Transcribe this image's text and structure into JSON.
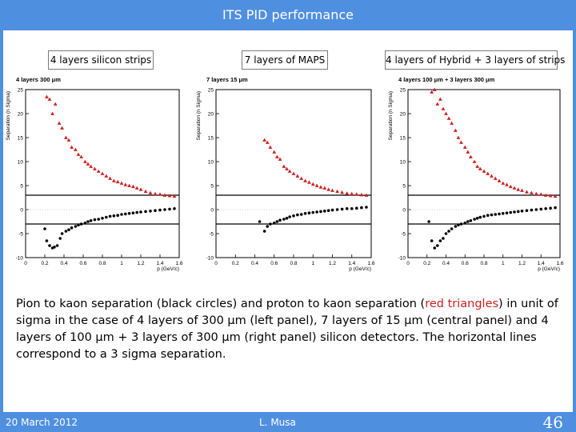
{
  "slide": {
    "title": "ITS PID performance",
    "footer_date": "20 March 2012",
    "footer_author": "L. Musa",
    "page_number": "46"
  },
  "panel_labels": [
    "4 layers silicon strips",
    "7 layers of MAPS",
    "4 layers of Hybrid + 3 layers of strips"
  ],
  "caption": {
    "part1": "Pion to kaon separation (black circles) and proton to kaon separation (",
    "highlight": "red triangles",
    "part2": ") in unit of sigma in the case of 4 layers of 300 μm (left panel), 7 layers of 15 μm (central panel) and 4 layers of 100 μm + 3 layers of 300 μm (right panel) silicon detectors. The horizontal lines correspond to a 3 sigma separation."
  },
  "colors": {
    "accent": "#4f8fe0",
    "proton_kaon": "#d02020",
    "pion_kaon": "#000000"
  },
  "chart_data": [
    {
      "type": "scatter",
      "title": "4 layers 300 μm",
      "xlabel": "p (GeV/c)",
      "ylabel": "Separation (n Sigma)",
      "xlim": [
        0,
        1.6
      ],
      "ylim": [
        -10,
        25
      ],
      "xticks": [
        "0",
        "0.2",
        "0.4",
        "0.6",
        "0.8",
        "1",
        "1.2",
        "1.4",
        "1.6"
      ],
      "yticks": [
        "-10",
        "-5",
        "0",
        "5",
        "10",
        "15",
        "20",
        "25"
      ],
      "hlines": [
        3,
        -3
      ],
      "series": [
        {
          "marker": "triangle",
          "color": "#d02020",
          "x": [
            0.22,
            0.25,
            0.28,
            0.31,
            0.35,
            0.38,
            0.42,
            0.45,
            0.48,
            0.52,
            0.55,
            0.58,
            0.62,
            0.65,
            0.68,
            0.72,
            0.76,
            0.8,
            0.84,
            0.88,
            0.92,
            0.96,
            1.0,
            1.04,
            1.08,
            1.12,
            1.16,
            1.2,
            1.25,
            1.3,
            1.35,
            1.4,
            1.45,
            1.5,
            1.55
          ],
          "y": [
            23.5,
            23,
            20,
            22,
            18,
            17,
            15,
            14.5,
            13,
            12.5,
            11.5,
            11,
            10,
            9.5,
            9,
            8.5,
            8,
            7.5,
            7,
            6.5,
            6,
            5.8,
            5.5,
            5.2,
            5,
            4.8,
            4.5,
            4.2,
            3.8,
            3.5,
            3.3,
            3.2,
            3,
            2.9,
            2.8
          ]
        },
        {
          "marker": "circle",
          "color": "#000000",
          "x": [
            0.2,
            0.22,
            0.25,
            0.28,
            0.3,
            0.33,
            0.36,
            0.38,
            0.42,
            0.45,
            0.48,
            0.52,
            0.55,
            0.58,
            0.62,
            0.65,
            0.68,
            0.72,
            0.76,
            0.8,
            0.84,
            0.88,
            0.92,
            0.96,
            1.0,
            1.04,
            1.08,
            1.12,
            1.16,
            1.2,
            1.25,
            1.3,
            1.35,
            1.4,
            1.45,
            1.5,
            1.55
          ],
          "y": [
            -4,
            -6.5,
            -7.5,
            -8,
            -7.8,
            -7.5,
            -6,
            -5,
            -4.5,
            -4.2,
            -3.8,
            -3.5,
            -3.2,
            -3,
            -2.8,
            -2.5,
            -2.3,
            -2.1,
            -2,
            -1.8,
            -1.6,
            -1.4,
            -1.3,
            -1.2,
            -1,
            -0.9,
            -0.8,
            -0.7,
            -0.6,
            -0.5,
            -0.4,
            -0.3,
            -0.2,
            -0.1,
            0,
            0.1,
            0.2
          ]
        }
      ]
    },
    {
      "type": "scatter",
      "title": "7 layers 15 μm",
      "xlabel": "p (GeV/c)",
      "ylabel": "Separation (n Sigma)",
      "xlim": [
        0,
        1.6
      ],
      "ylim": [
        -10,
        25
      ],
      "xticks": [
        "0",
        "0.2",
        "0.4",
        "0.6",
        "0.8",
        "1",
        "1.2",
        "1.4",
        "1.6"
      ],
      "yticks": [
        "-10",
        "-5",
        "0",
        "5",
        "10",
        "15",
        "20",
        "25"
      ],
      "hlines": [
        3,
        -3
      ],
      "series": [
        {
          "marker": "triangle",
          "color": "#d02020",
          "x": [
            0.5,
            0.53,
            0.56,
            0.6,
            0.63,
            0.66,
            0.7,
            0.73,
            0.76,
            0.8,
            0.84,
            0.88,
            0.92,
            0.96,
            1.0,
            1.04,
            1.08,
            1.12,
            1.16,
            1.2,
            1.25,
            1.3,
            1.35,
            1.4,
            1.45,
            1.5,
            1.55
          ],
          "y": [
            14.5,
            14,
            13,
            12,
            11,
            10.5,
            9,
            8.5,
            8,
            7.5,
            7,
            6.5,
            6,
            5.7,
            5.3,
            5,
            4.7,
            4.5,
            4.2,
            4,
            3.8,
            3.6,
            3.4,
            3.3,
            3.2,
            3.1,
            3
          ]
        },
        {
          "marker": "circle",
          "color": "#000000",
          "x": [
            0.45,
            0.5,
            0.53,
            0.56,
            0.6,
            0.63,
            0.66,
            0.7,
            0.73,
            0.76,
            0.8,
            0.84,
            0.88,
            0.92,
            0.96,
            1.0,
            1.04,
            1.08,
            1.12,
            1.16,
            1.2,
            1.25,
            1.3,
            1.35,
            1.4,
            1.45,
            1.5,
            1.55
          ],
          "y": [
            -2.5,
            -4.5,
            -3.5,
            -3,
            -2.8,
            -2.5,
            -2.2,
            -2,
            -1.8,
            -1.5,
            -1.3,
            -1.1,
            -1,
            -0.8,
            -0.7,
            -0.6,
            -0.5,
            -0.4,
            -0.3,
            -0.2,
            -0.1,
            0,
            0.1,
            0.2,
            0.2,
            0.3,
            0.4,
            0.5
          ]
        }
      ]
    },
    {
      "type": "scatter",
      "title": "4 layers 100 μm + 3 layers 300 μm",
      "xlabel": "p (GeV/c)",
      "ylabel": "Separation (n Sigma)",
      "xlim": [
        0,
        1.6
      ],
      "ylim": [
        -10,
        25
      ],
      "xticks": [
        "0",
        "0.2",
        "0.4",
        "0.6",
        "0.8",
        "1",
        "1.2",
        "1.4",
        "1.6"
      ],
      "yticks": [
        "-10",
        "-5",
        "0",
        "5",
        "10",
        "15",
        "20",
        "25"
      ],
      "hlines": [
        3,
        -3
      ],
      "series": [
        {
          "marker": "triangle",
          "color": "#d02020",
          "x": [
            0.25,
            0.28,
            0.31,
            0.34,
            0.37,
            0.4,
            0.43,
            0.46,
            0.5,
            0.53,
            0.56,
            0.6,
            0.63,
            0.66,
            0.7,
            0.73,
            0.76,
            0.8,
            0.84,
            0.88,
            0.92,
            0.96,
            1.0,
            1.04,
            1.08,
            1.12,
            1.16,
            1.2,
            1.25,
            1.3,
            1.35,
            1.4,
            1.45,
            1.5,
            1.55
          ],
          "y": [
            24.5,
            25,
            22,
            23,
            21,
            20,
            19,
            18,
            16.5,
            15,
            14,
            13,
            12,
            11,
            10,
            9,
            8.5,
            8,
            7.5,
            7,
            6.5,
            6,
            5.5,
            5.2,
            4.8,
            4.5,
            4.2,
            4,
            3.7,
            3.5,
            3.3,
            3.2,
            3,
            2.9,
            2.8
          ]
        },
        {
          "marker": "circle",
          "color": "#000000",
          "x": [
            0.22,
            0.25,
            0.28,
            0.31,
            0.34,
            0.37,
            0.4,
            0.43,
            0.46,
            0.5,
            0.53,
            0.56,
            0.6,
            0.63,
            0.66,
            0.7,
            0.73,
            0.76,
            0.8,
            0.84,
            0.88,
            0.92,
            0.96,
            1.0,
            1.04,
            1.08,
            1.12,
            1.16,
            1.2,
            1.25,
            1.3,
            1.35,
            1.4,
            1.45,
            1.5,
            1.55
          ],
          "y": [
            -2.5,
            -6.5,
            -8,
            -7.5,
            -6.5,
            -6,
            -5,
            -4.5,
            -4,
            -3.5,
            -3.2,
            -3,
            -2.8,
            -2.5,
            -2.3,
            -2,
            -1.8,
            -1.6,
            -1.4,
            -1.2,
            -1.1,
            -1,
            -0.9,
            -0.8,
            -0.7,
            -0.6,
            -0.5,
            -0.4,
            -0.3,
            -0.2,
            -0.1,
            0,
            0.1,
            0.2,
            0.3,
            0.4
          ]
        }
      ]
    }
  ]
}
